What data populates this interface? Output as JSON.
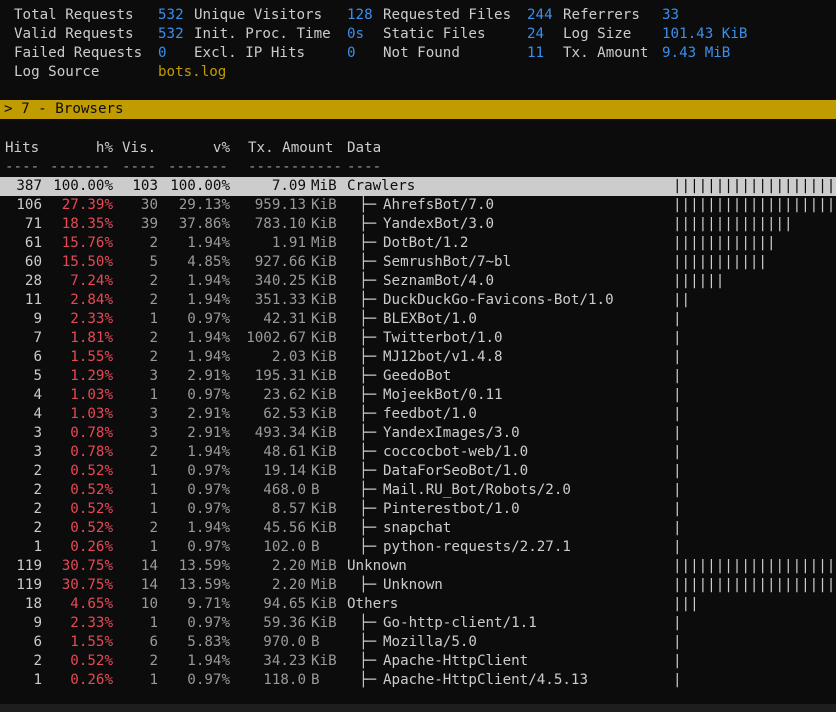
{
  "overview": {
    "total_requests_label": "Total Requests",
    "total_requests": "532",
    "unique_visitors_label": "Unique Visitors",
    "unique_visitors": "128",
    "requested_files_label": "Requested Files",
    "requested_files": "244",
    "referrers_label": "Referrers",
    "referrers": "33",
    "valid_requests_label": "Valid Requests",
    "valid_requests": "532",
    "init_proc_time_label": "Init. Proc. Time",
    "init_proc_time": "0s",
    "static_files_label": "Static Files",
    "static_files": "24",
    "log_size_label": "Log Size",
    "log_size": "101.43 KiB",
    "failed_requests_label": "Failed Requests",
    "failed_requests": "0",
    "excl_ip_hits_label": "Excl. IP Hits",
    "excl_ip_hits": "0",
    "not_found_label": "Not Found",
    "not_found": "11",
    "tx_amount_label": "Tx. Amount",
    "tx_amount": "9.43 MiB",
    "log_source_label": "Log Source",
    "log_source": "bots.log"
  },
  "panel": {
    "title": "> 7 - Browsers"
  },
  "columns": {
    "hits": "Hits",
    "hpct": "h%",
    "vis": "Vis.",
    "vpct": "v%",
    "tx": "Tx. Amount",
    "data": "Data",
    "dash_hits": "----",
    "dash_hpct": "-------",
    "dash_vis": "----",
    "dash_vpct": "-------",
    "dash_tx": "-----------",
    "dash_data": "----"
  },
  "rows": [
    {
      "hits": "387",
      "hpct": "100.00%",
      "vis": "103",
      "vpct": "100.00%",
      "tx": "7.09",
      "unit": "MiB",
      "tree": "",
      "name": "Crawlers",
      "bar": "||||||||||||||||||||||",
      "selected": true
    },
    {
      "hits": "106",
      "hpct": "27.39%",
      "vis": "30",
      "vpct": "29.13%",
      "tx": "959.13",
      "unit": "KiB",
      "tree": "├─",
      "name": "AhrefsBot/7.0",
      "bar": "||||||||||||||||||||||"
    },
    {
      "hits": "71",
      "hpct": "18.35%",
      "vis": "39",
      "vpct": "37.86%",
      "tx": "783.10",
      "unit": "KiB",
      "tree": "├─",
      "name": "YandexBot/3.0",
      "bar": "||||||||||||||"
    },
    {
      "hits": "61",
      "hpct": "15.76%",
      "vis": "2",
      "vpct": "1.94%",
      "tx": "1.91",
      "unit": "MiB",
      "tree": "├─",
      "name": "DotBot/1.2",
      "bar": "||||||||||||"
    },
    {
      "hits": "60",
      "hpct": "15.50%",
      "vis": "5",
      "vpct": "4.85%",
      "tx": "927.66",
      "unit": "KiB",
      "tree": "├─",
      "name": "SemrushBot/7~bl",
      "bar": "|||||||||||"
    },
    {
      "hits": "28",
      "hpct": "7.24%",
      "vis": "2",
      "vpct": "1.94%",
      "tx": "340.25",
      "unit": "KiB",
      "tree": "├─",
      "name": "SeznamBot/4.0",
      "bar": "||||||"
    },
    {
      "hits": "11",
      "hpct": "2.84%",
      "vis": "2",
      "vpct": "1.94%",
      "tx": "351.33",
      "unit": "KiB",
      "tree": "├─",
      "name": "DuckDuckGo-Favicons-Bot/1.0",
      "bar": "||"
    },
    {
      "hits": "9",
      "hpct": "2.33%",
      "vis": "1",
      "vpct": "0.97%",
      "tx": "42.31",
      "unit": "KiB",
      "tree": "├─",
      "name": "BLEXBot/1.0",
      "bar": "|"
    },
    {
      "hits": "7",
      "hpct": "1.81%",
      "vis": "2",
      "vpct": "1.94%",
      "tx": "1002.67",
      "unit": "KiB",
      "tree": "├─",
      "name": "Twitterbot/1.0",
      "bar": "|"
    },
    {
      "hits": "6",
      "hpct": "1.55%",
      "vis": "2",
      "vpct": "1.94%",
      "tx": "2.03",
      "unit": "KiB",
      "tree": "├─",
      "name": "MJ12bot/v1.4.8",
      "bar": "|"
    },
    {
      "hits": "5",
      "hpct": "1.29%",
      "vis": "3",
      "vpct": "2.91%",
      "tx": "195.31",
      "unit": "KiB",
      "tree": "├─",
      "name": "GeedoBot",
      "bar": "|"
    },
    {
      "hits": "4",
      "hpct": "1.03%",
      "vis": "1",
      "vpct": "0.97%",
      "tx": "23.62",
      "unit": "KiB",
      "tree": "├─",
      "name": "MojeekBot/0.11",
      "bar": "|"
    },
    {
      "hits": "4",
      "hpct": "1.03%",
      "vis": "3",
      "vpct": "2.91%",
      "tx": "62.53",
      "unit": "KiB",
      "tree": "├─",
      "name": "feedbot/1.0",
      "bar": "|"
    },
    {
      "hits": "3",
      "hpct": "0.78%",
      "vis": "3",
      "vpct": "2.91%",
      "tx": "493.34",
      "unit": "KiB",
      "tree": "├─",
      "name": "YandexImages/3.0",
      "bar": "|"
    },
    {
      "hits": "3",
      "hpct": "0.78%",
      "vis": "2",
      "vpct": "1.94%",
      "tx": "48.61",
      "unit": "KiB",
      "tree": "├─",
      "name": "coccocbot-web/1.0",
      "bar": "|"
    },
    {
      "hits": "2",
      "hpct": "0.52%",
      "vis": "1",
      "vpct": "0.97%",
      "tx": "19.14",
      "unit": "KiB",
      "tree": "├─",
      "name": "DataForSeoBot/1.0",
      "bar": "|"
    },
    {
      "hits": "2",
      "hpct": "0.52%",
      "vis": "1",
      "vpct": "0.97%",
      "tx": "468.0",
      "unit": "B",
      "tree": "├─",
      "name": "Mail.RU_Bot/Robots/2.0",
      "bar": "|"
    },
    {
      "hits": "2",
      "hpct": "0.52%",
      "vis": "1",
      "vpct": "0.97%",
      "tx": "8.57",
      "unit": "KiB",
      "tree": "├─",
      "name": "Pinterestbot/1.0",
      "bar": "|"
    },
    {
      "hits": "2",
      "hpct": "0.52%",
      "vis": "2",
      "vpct": "1.94%",
      "tx": "45.56",
      "unit": "KiB",
      "tree": "├─",
      "name": "snapchat",
      "bar": "|"
    },
    {
      "hits": "1",
      "hpct": "0.26%",
      "vis": "1",
      "vpct": "0.97%",
      "tx": "102.0",
      "unit": "B",
      "tree": "├─",
      "name": "python-requests/2.27.1",
      "bar": "|"
    },
    {
      "hits": "119",
      "hpct": "30.75%",
      "vis": "14",
      "vpct": "13.59%",
      "tx": "2.20",
      "unit": "MiB",
      "tree": "",
      "name": "Unknown",
      "bar": "||||||||||||||||||||||"
    },
    {
      "hits": "119",
      "hpct": "30.75%",
      "vis": "14",
      "vpct": "13.59%",
      "tx": "2.20",
      "unit": "MiB",
      "tree": "├─",
      "name": "Unknown",
      "bar": "||||||||||||||||||||||"
    },
    {
      "hits": "18",
      "hpct": "4.65%",
      "vis": "10",
      "vpct": "9.71%",
      "tx": "94.65",
      "unit": "KiB",
      "tree": "",
      "name": "Others",
      "bar": "|||"
    },
    {
      "hits": "9",
      "hpct": "2.33%",
      "vis": "1",
      "vpct": "0.97%",
      "tx": "59.36",
      "unit": "KiB",
      "tree": "├─",
      "name": "Go-http-client/1.1",
      "bar": "|"
    },
    {
      "hits": "6",
      "hpct": "1.55%",
      "vis": "6",
      "vpct": "5.83%",
      "tx": "970.0",
      "unit": "B",
      "tree": "├─",
      "name": "Mozilla/5.0",
      "bar": "|"
    },
    {
      "hits": "2",
      "hpct": "0.52%",
      "vis": "2",
      "vpct": "1.94%",
      "tx": "34.23",
      "unit": "KiB",
      "tree": "├─",
      "name": "Apache-HttpClient",
      "bar": "|"
    },
    {
      "hits": "1",
      "hpct": "0.26%",
      "vis": "1",
      "vpct": "0.97%",
      "tx": "118.0",
      "unit": "B",
      "tree": "├─",
      "name": "Apache-HttpClient/4.5.13",
      "bar": "|"
    }
  ]
}
